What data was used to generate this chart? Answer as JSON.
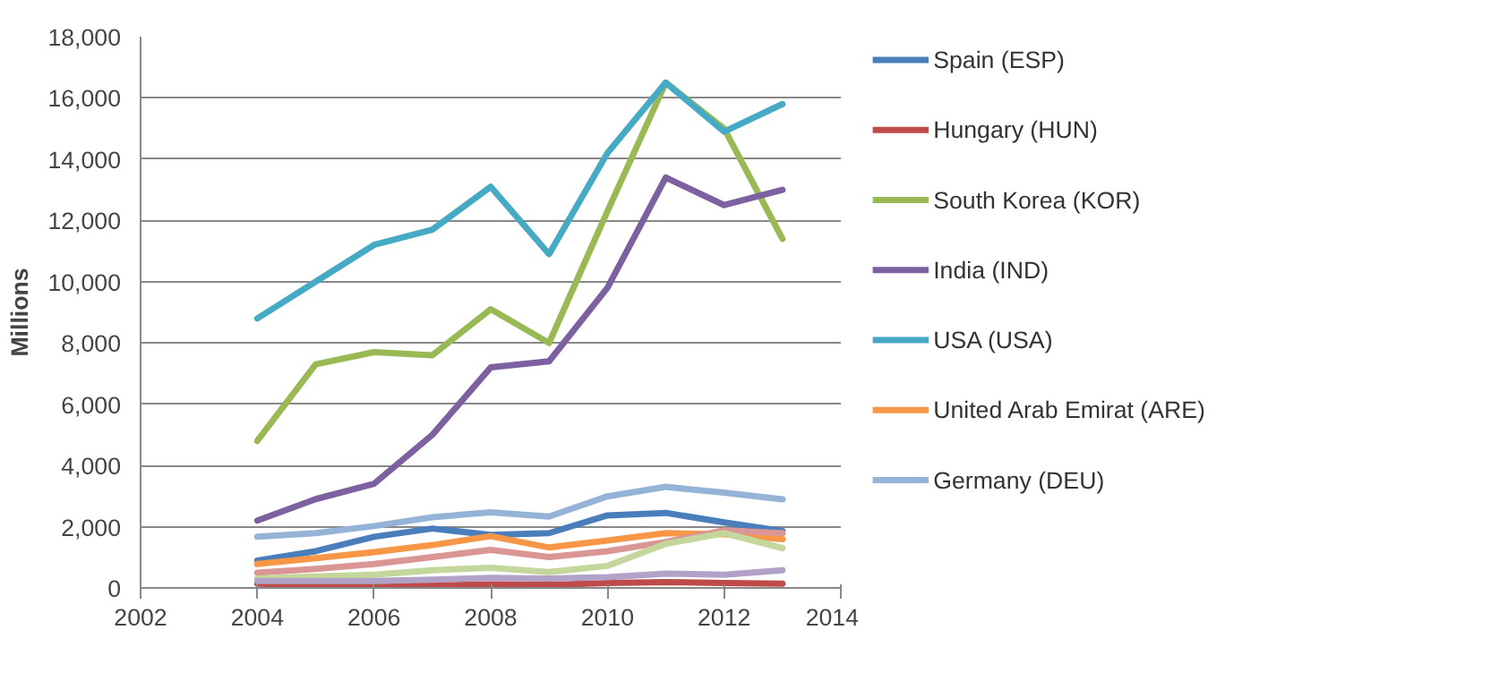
{
  "chart_data": {
    "type": "line",
    "ylabel": "Millions",
    "x": [
      2004,
      2005,
      2006,
      2007,
      2008,
      2009,
      2010,
      2011,
      2012,
      2013
    ],
    "xlim": [
      2002,
      2014
    ],
    "xticks": [
      2002,
      2004,
      2006,
      2008,
      2010,
      2012,
      2014
    ],
    "ylim": [
      0,
      18000
    ],
    "yticks": [
      {
        "value": 0,
        "label": "0"
      },
      {
        "value": 2000,
        "label": "2,000"
      },
      {
        "value": 4000,
        "label": "4,000"
      },
      {
        "value": 6000,
        "label": "6,000"
      },
      {
        "value": 8000,
        "label": "8,000"
      },
      {
        "value": 10000,
        "label": "10,000"
      },
      {
        "value": 12000,
        "label": "12,000"
      },
      {
        "value": 14000,
        "label": "14,000"
      },
      {
        "value": 16000,
        "label": "16,000"
      },
      {
        "value": 18000,
        "label": "18,000"
      }
    ],
    "grid": "y",
    "legend": "right",
    "line_style": "solid",
    "marker": "none",
    "series": [
      {
        "name": "Spain (ESP)",
        "color": "#4a7ebb",
        "values": [
          890,
          1200,
          1670,
          1940,
          1730,
          1790,
          2370,
          2450,
          2140,
          1860
        ]
      },
      {
        "name": "Hungary (HUN)",
        "color": "#be4b48",
        "values": [
          140,
          110,
          90,
          80,
          120,
          100,
          160,
          190,
          160,
          140
        ]
      },
      {
        "name": "South Korea (KOR)",
        "color": "#98b954",
        "values": [
          4800,
          7300,
          7700,
          7600,
          9100,
          8000,
          12300,
          16500,
          15000,
          11400
        ]
      },
      {
        "name": "India (IND)",
        "color": "#7d60a0",
        "values": [
          2200,
          2900,
          3400,
          5000,
          7200,
          7400,
          9800,
          13400,
          12500,
          13000
        ]
      },
      {
        "name": "USA (USA)",
        "color": "#46aac5",
        "values": [
          8800,
          10000,
          11200,
          11700,
          13100,
          10900,
          14200,
          16500,
          14900,
          15800
        ]
      },
      {
        "name": "United Arab Emirat (ARE)",
        "color": "#f79646",
        "values": [
          780,
          970,
          1170,
          1400,
          1690,
          1320,
          1550,
          1790,
          1750,
          1590
        ]
      },
      {
        "name": "Germany (DEU)",
        "color": "#95b3d7",
        "values": [
          1670,
          1790,
          2020,
          2310,
          2470,
          2330,
          2990,
          3300,
          3110,
          2890
        ]
      },
      {
        "color": "#d99694",
        "values": [
          500,
          620,
          780,
          1010,
          1240,
          1010,
          1200,
          1500,
          1880,
          1790
        ]
      },
      {
        "color": "#c3d69b",
        "values": [
          310,
          370,
          430,
          580,
          660,
          520,
          720,
          1440,
          1790,
          1300
        ]
      },
      {
        "color": "#b3a2c7",
        "values": [
          230,
          230,
          230,
          270,
          330,
          310,
          350,
          470,
          430,
          580
        ]
      }
    ]
  }
}
